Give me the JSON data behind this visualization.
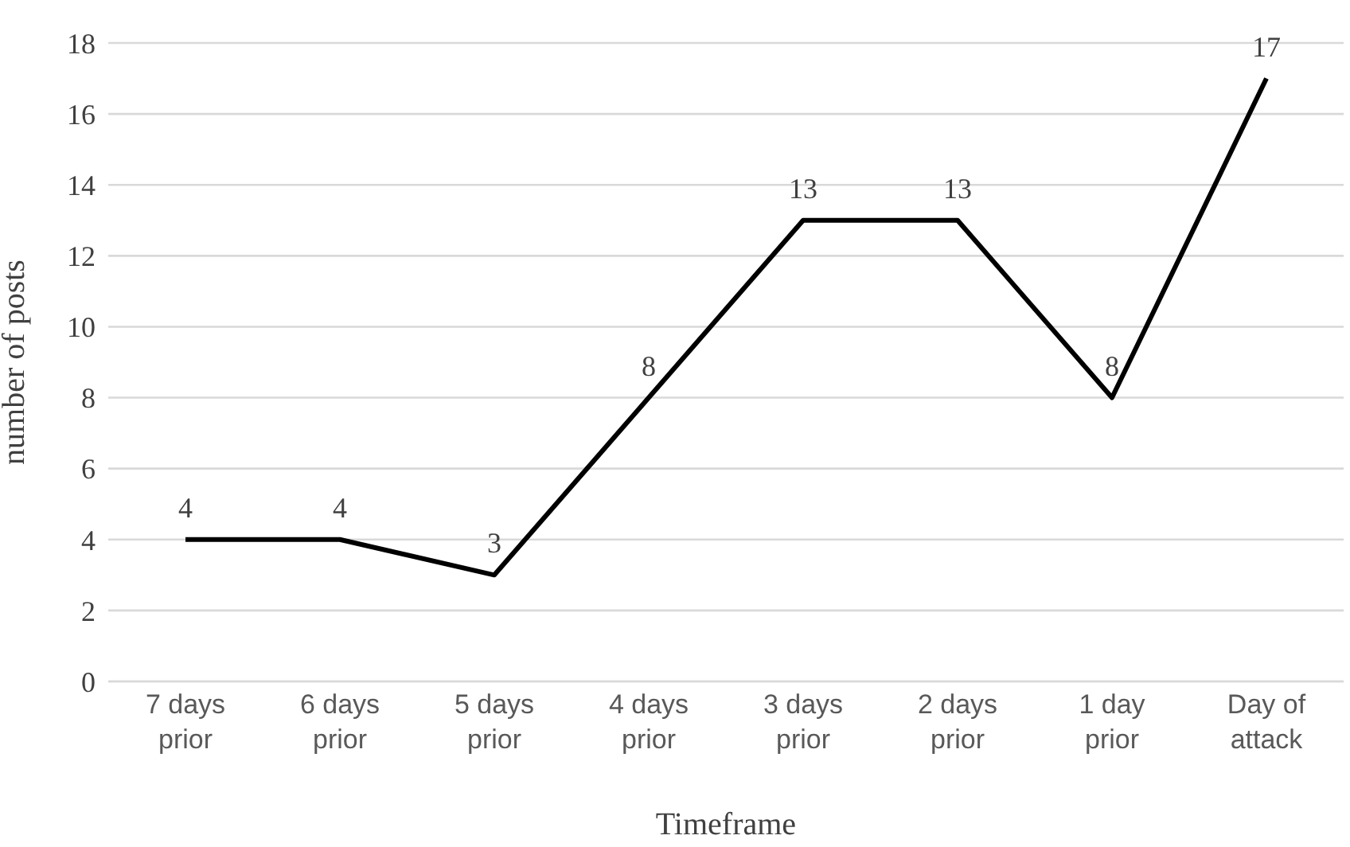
{
  "chart_data": {
    "type": "line",
    "xlabel": "Timeframe",
    "ylabel": "number of posts",
    "categories": [
      "7 days prior",
      "6 days prior",
      "5 days prior",
      "4 days prior",
      "3 days prior",
      "2 days prior",
      "1 day prior",
      "Day of attack"
    ],
    "series": [
      {
        "color": "#000000",
        "values": [
          4,
          4,
          3,
          8,
          13,
          13,
          8,
          17
        ]
      }
    ],
    "ylim": [
      0,
      18
    ],
    "yticks": [
      0,
      2,
      4,
      6,
      8,
      10,
      12,
      14,
      16,
      18
    ],
    "grid": "y",
    "data_labels": true,
    "marker": "none",
    "line_style": "solid",
    "legend": false
  }
}
